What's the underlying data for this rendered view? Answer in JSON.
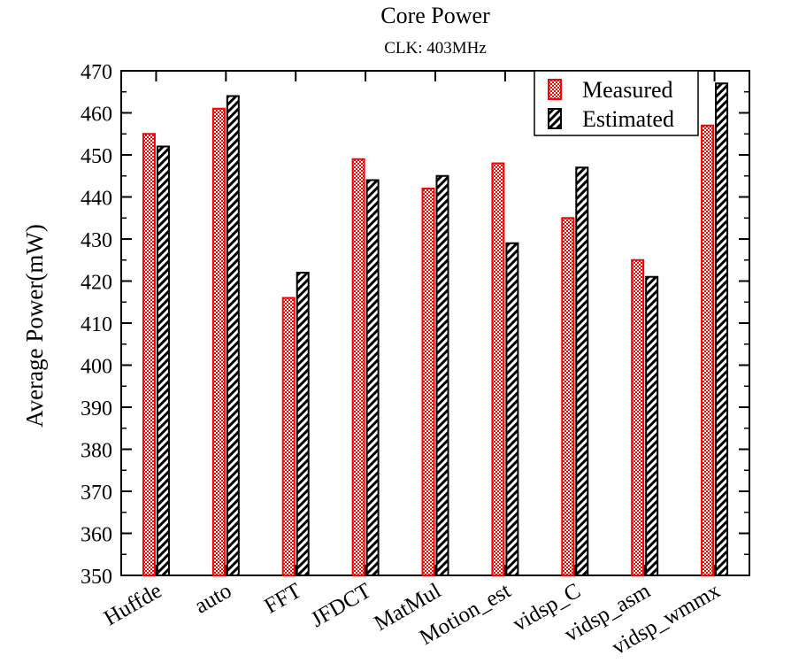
{
  "chart_data": {
    "type": "bar",
    "title": "Core Power",
    "subtitle": "CLK: 403MHz",
    "xlabel": "",
    "ylabel": "Average Power(mW)",
    "ylim": [
      350,
      470
    ],
    "yticks": [
      "350",
      "360",
      "370",
      "380",
      "390",
      "400",
      "410",
      "420",
      "430",
      "440",
      "450",
      "460",
      "470"
    ],
    "grid": false,
    "legend_position": "top-right",
    "categories": [
      "Huffde",
      "auto",
      "FFT",
      "JFDCT",
      "MatMul",
      "Motion_est",
      "vidsp_C",
      "vidsp_asm",
      "vidsp_wmmx"
    ],
    "series": [
      {
        "name": "Measured",
        "values": [
          455,
          461,
          416,
          449,
          442,
          448,
          435,
          425,
          457
        ],
        "color": "#ff0000",
        "fill": "#f08080"
      },
      {
        "name": "Estimated",
        "values": [
          452,
          464,
          422,
          444,
          445,
          429,
          447,
          421,
          467
        ],
        "color": "#000000",
        "fill": "hatch"
      }
    ]
  }
}
